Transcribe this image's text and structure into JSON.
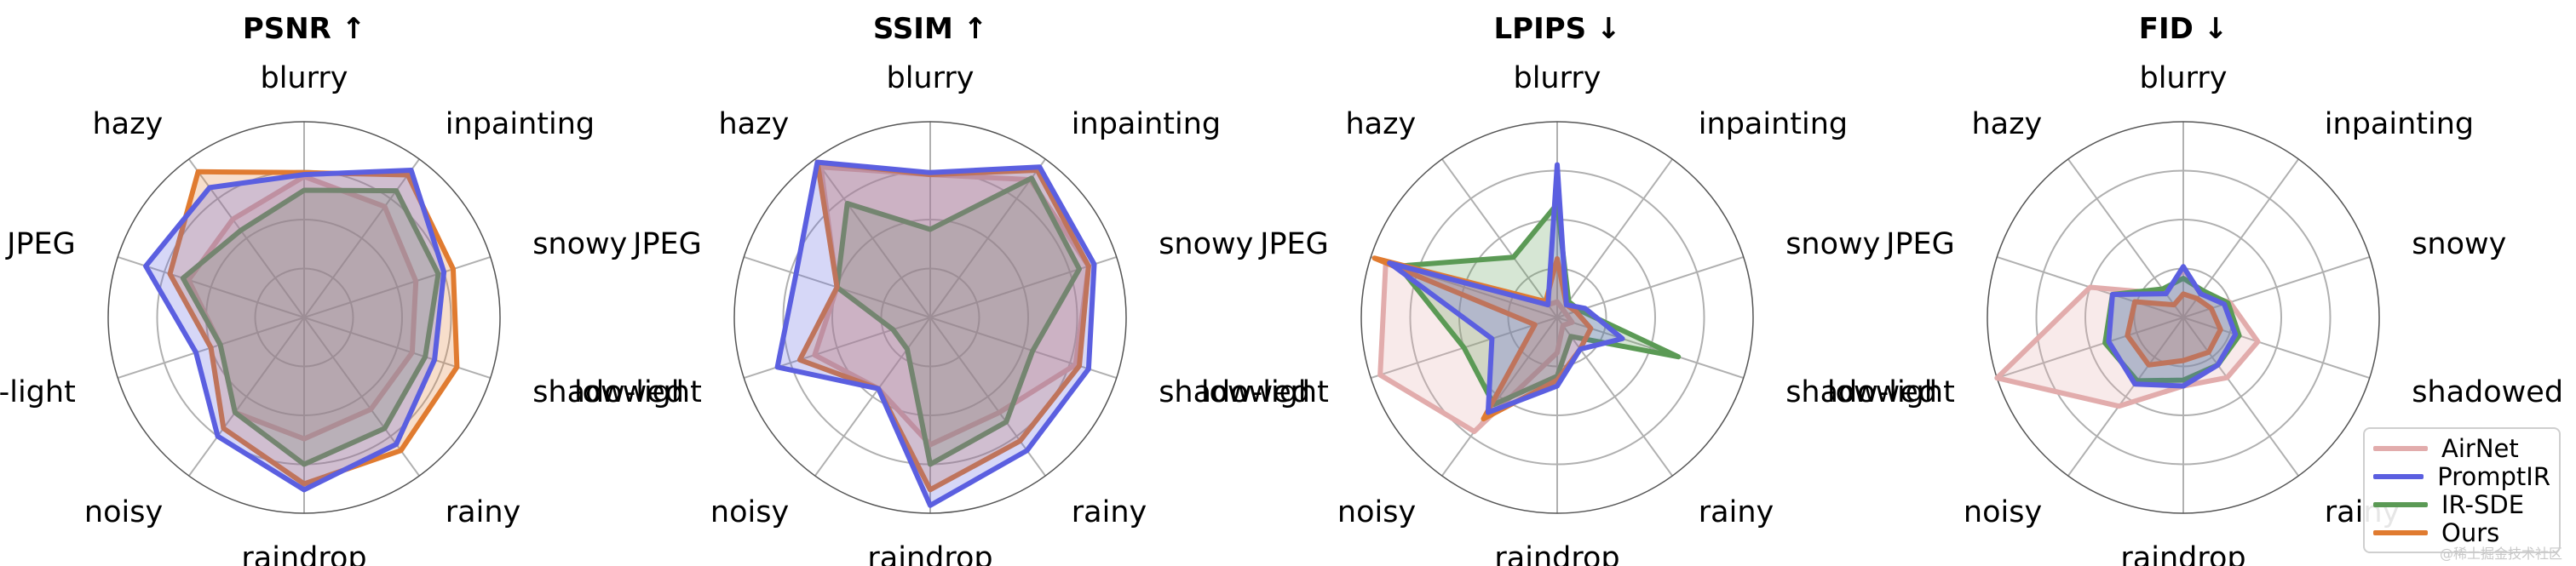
{
  "chart_data": [
    {
      "type": "radar",
      "title": "PSNR ↑",
      "categories": [
        "blurry",
        "inpainting",
        "snowy",
        "shadowed",
        "rainy",
        "raindrop",
        "noisy",
        "low-light",
        "JPEG",
        "hazy"
      ],
      "rlim": [
        0,
        1
      ],
      "series": [
        {
          "name": "AirNet",
          "values": [
            0.72,
            0.7,
            0.6,
            0.58,
            0.58,
            0.62,
            0.6,
            0.45,
            0.62,
            0.62
          ]
        },
        {
          "name": "PromptIR",
          "values": [
            0.73,
            0.93,
            0.75,
            0.7,
            0.8,
            0.88,
            0.75,
            0.58,
            0.85,
            0.82
          ]
        },
        {
          "name": "IR-SDE",
          "values": [
            0.65,
            0.8,
            0.72,
            0.65,
            0.7,
            0.75,
            0.6,
            0.45,
            0.65,
            0.55
          ]
        },
        {
          "name": "Ours",
          "values": [
            0.74,
            0.9,
            0.8,
            0.82,
            0.84,
            0.85,
            0.7,
            0.5,
            0.72,
            0.92
          ]
        }
      ]
    },
    {
      "type": "radar",
      "title": "SSIM ↑",
      "categories": [
        "blurry",
        "inpainting",
        "snowy",
        "shadowed",
        "rainy",
        "raindrop",
        "noisy",
        "low-light",
        "JPEG",
        "hazy"
      ],
      "rlim": [
        0,
        1
      ],
      "series": [
        {
          "name": "AirNet",
          "values": [
            0.73,
            0.87,
            0.85,
            0.78,
            0.6,
            0.65,
            0.45,
            0.62,
            0.5,
            0.95
          ]
        },
        {
          "name": "PromptIR",
          "values": [
            0.74,
            0.95,
            0.88,
            0.85,
            0.84,
            0.96,
            0.45,
            0.82,
            0.72,
            0.98
          ]
        },
        {
          "name": "IR-SDE",
          "values": [
            0.45,
            0.88,
            0.8,
            0.55,
            0.66,
            0.75,
            0.2,
            0.2,
            0.5,
            0.72
          ]
        },
        {
          "name": "Ours",
          "values": [
            0.73,
            0.93,
            0.85,
            0.8,
            0.78,
            0.88,
            0.45,
            0.7,
            0.5,
            0.98
          ]
        }
      ]
    },
    {
      "type": "radar",
      "title": "LPIPS ↓",
      "categories": [
        "blurry",
        "inpainting",
        "snowy",
        "shadowed",
        "rainy",
        "raindrop",
        "noisy",
        "low-light",
        "JPEG",
        "hazy"
      ],
      "rlim": [
        0,
        1
      ],
      "series": [
        {
          "name": "AirNet",
          "values": [
            0.08,
            0.05,
            0.05,
            0.08,
            0.05,
            0.18,
            0.72,
            0.95,
            0.92,
            0.08
          ]
        },
        {
          "name": "PromptIR",
          "values": [
            0.78,
            0.08,
            0.15,
            0.35,
            0.2,
            0.35,
            0.6,
            0.35,
            0.9,
            0.08
          ]
        },
        {
          "name": "IR-SDE",
          "values": [
            0.58,
            0.1,
            0.12,
            0.65,
            0.12,
            0.3,
            0.55,
            0.5,
            0.85,
            0.38
          ]
        },
        {
          "name": "Ours",
          "values": [
            0.3,
            0.08,
            0.1,
            0.18,
            0.2,
            0.32,
            0.64,
            0.12,
            0.98,
            0.1
          ]
        }
      ]
    },
    {
      "type": "radar",
      "title": "FID ↓",
      "categories": [
        "blurry",
        "inpainting",
        "snowy",
        "shadowed",
        "rainy",
        "raindrop",
        "noisy",
        "low-light",
        "JPEG",
        "hazy"
      ],
      "rlim": [
        0,
        1
      ],
      "series": [
        {
          "name": "AirNet",
          "values": [
            0.25,
            0.15,
            0.25,
            0.4,
            0.38,
            0.35,
            0.56,
            1.0,
            0.5,
            0.15
          ]
        },
        {
          "name": "PromptIR",
          "values": [
            0.26,
            0.15,
            0.22,
            0.28,
            0.3,
            0.35,
            0.42,
            0.4,
            0.38,
            0.15
          ]
        },
        {
          "name": "IR-SDE",
          "values": [
            0.2,
            0.17,
            0.24,
            0.3,
            0.3,
            0.32,
            0.4,
            0.42,
            0.38,
            0.18
          ]
        },
        {
          "name": "Ours",
          "values": [
            0.12,
            0.12,
            0.15,
            0.2,
            0.22,
            0.22,
            0.3,
            0.3,
            0.26,
            0.08
          ]
        }
      ]
    }
  ],
  "legend": {
    "placement": "bottom-right",
    "items": [
      {
        "label": "AirNet",
        "color": "#e2acac"
      },
      {
        "label": "PromptIR",
        "color": "#5b5fe0"
      },
      {
        "label": "IR-SDE",
        "color": "#5b9a55"
      },
      {
        "label": "Ours",
        "color": "#e07b30"
      }
    ]
  },
  "colors": {
    "AirNet": "#e2acac",
    "PromptIR": "#5b5fe0",
    "IR-SDE": "#5b9a55",
    "Ours": "#e07b30"
  },
  "watermark": "@稀土掘金技术社区"
}
